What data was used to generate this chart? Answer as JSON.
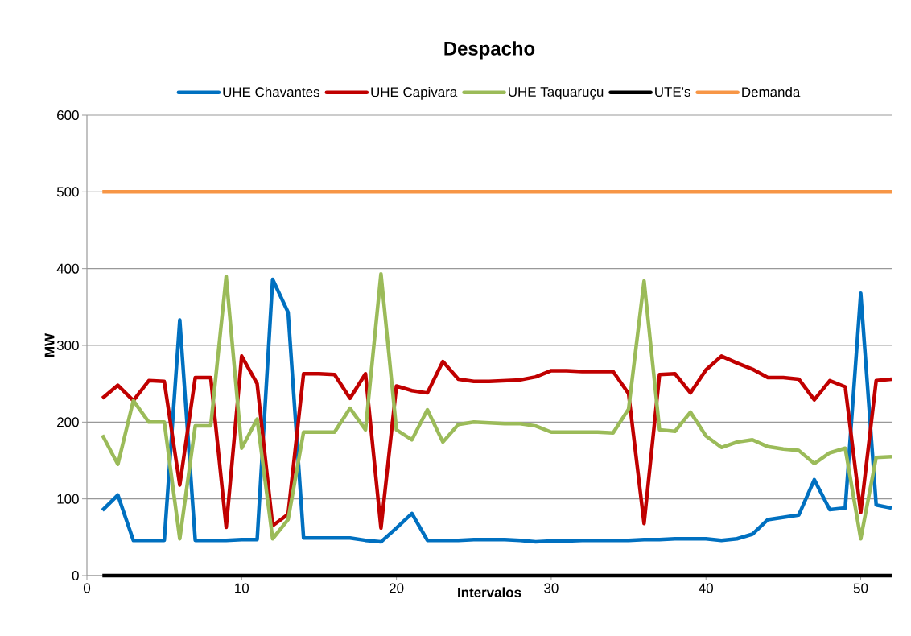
{
  "chart_data": {
    "type": "line",
    "title": "Despacho",
    "xlabel": "Intervalos",
    "ylabel": "MW",
    "x": [
      1,
      2,
      3,
      4,
      5,
      6,
      7,
      8,
      9,
      10,
      11,
      12,
      13,
      14,
      15,
      16,
      17,
      18,
      19,
      20,
      21,
      22,
      23,
      24,
      25,
      26,
      27,
      28,
      29,
      30,
      31,
      32,
      33,
      34,
      35,
      36,
      37,
      38,
      39,
      40,
      41,
      42,
      43,
      44,
      45,
      46,
      47,
      48,
      49,
      50,
      51,
      52
    ],
    "series": [
      {
        "name": "UHE Chavantes",
        "color": "#0070c0",
        "values": [
          85,
          105,
          46,
          46,
          46,
          333,
          46,
          46,
          46,
          47,
          47,
          386,
          343,
          49,
          49,
          49,
          49,
          46,
          44,
          62,
          81,
          46,
          46,
          46,
          47,
          47,
          47,
          46,
          44,
          45,
          45,
          46,
          46,
          46,
          46,
          47,
          47,
          48,
          48,
          48,
          46,
          48,
          54,
          73,
          76,
          79,
          125,
          86,
          88,
          368,
          92,
          88
        ]
      },
      {
        "name": "UHE Capivara",
        "color": "#c00000",
        "values": [
          231,
          248,
          228,
          254,
          253,
          118,
          258,
          258,
          63,
          286,
          250,
          65,
          80,
          263,
          263,
          262,
          231,
          263,
          62,
          247,
          241,
          238,
          279,
          256,
          253,
          253,
          254,
          255,
          259,
          267,
          267,
          266,
          266,
          266,
          237,
          68,
          262,
          263,
          238,
          268,
          286,
          277,
          269,
          258,
          258,
          256,
          229,
          254,
          246,
          82,
          254,
          256
        ]
      },
      {
        "name": "UHE Taquaruçu",
        "color": "#9bbb59",
        "values": [
          183,
          145,
          228,
          200,
          200,
          48,
          195,
          195,
          390,
          166,
          204,
          48,
          73,
          187,
          187,
          187,
          218,
          190,
          393,
          190,
          177,
          216,
          174,
          197,
          200,
          199,
          198,
          198,
          195,
          187,
          187,
          187,
          187,
          186,
          217,
          384,
          190,
          188,
          213,
          182,
          167,
          174,
          177,
          168,
          165,
          163,
          146,
          160,
          166,
          48,
          154,
          155
        ]
      },
      {
        "name": "UTE's",
        "color": "#000000",
        "values": [
          0,
          0,
          0,
          0,
          0,
          0,
          0,
          0,
          0,
          0,
          0,
          0,
          0,
          0,
          0,
          0,
          0,
          0,
          0,
          0,
          0,
          0,
          0,
          0,
          0,
          0,
          0,
          0,
          0,
          0,
          0,
          0,
          0,
          0,
          0,
          0,
          0,
          0,
          0,
          0,
          0,
          0,
          0,
          0,
          0,
          0,
          0,
          0,
          0,
          0,
          0,
          0
        ]
      },
      {
        "name": "Demanda",
        "color": "#f79646",
        "values": [
          500,
          500,
          500,
          500,
          500,
          500,
          500,
          500,
          500,
          500,
          500,
          500,
          500,
          500,
          500,
          500,
          500,
          500,
          500,
          500,
          500,
          500,
          500,
          500,
          500,
          500,
          500,
          500,
          500,
          500,
          500,
          500,
          500,
          500,
          500,
          500,
          500,
          500,
          500,
          500,
          500,
          500,
          500,
          500,
          500,
          500,
          500,
          500,
          500,
          500,
          500,
          500
        ]
      }
    ],
    "xlim": [
      0,
      52
    ],
    "xticks": [
      0,
      10,
      20,
      30,
      40,
      50
    ],
    "ylim": [
      0,
      600
    ],
    "yticks": [
      0,
      100,
      200,
      300,
      400,
      500,
      600
    ],
    "grid": "y",
    "legend": "top",
    "marker": "none",
    "line_style": "solid"
  }
}
